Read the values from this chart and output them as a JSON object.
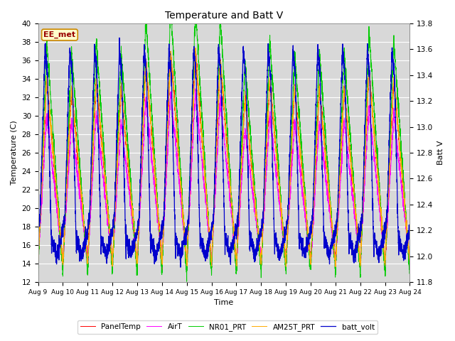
{
  "title": "Temperature and Batt V",
  "xlabel": "Time",
  "ylabel_left": "Temperature (C)",
  "ylabel_right": "Batt V",
  "ylim_left": [
    12,
    40
  ],
  "ylim_right": [
    11.8,
    13.8
  ],
  "x_tick_labels": [
    "Aug 9",
    "Aug 10",
    "Aug 11",
    "Aug 12",
    "Aug 13",
    "Aug 14",
    "Aug 15",
    "Aug 16",
    "Aug 17",
    "Aug 18",
    "Aug 19",
    "Aug 20",
    "Aug 21",
    "Aug 22",
    "Aug 23",
    "Aug 24"
  ],
  "watermark": "EE_met",
  "colors": {
    "PanelTemp": "#ff0000",
    "AirT": "#ff00ff",
    "NR01_PRT": "#00cc00",
    "AM25T_PRT": "#ffaa00",
    "batt_volt": "#0000cc"
  },
  "plot_bg_color": "#d8d8d8",
  "grid_color": "#ffffff",
  "legend_entries": [
    "PanelTemp",
    "AirT",
    "NR01_PRT",
    "AM25T_PRT",
    "batt_volt"
  ]
}
